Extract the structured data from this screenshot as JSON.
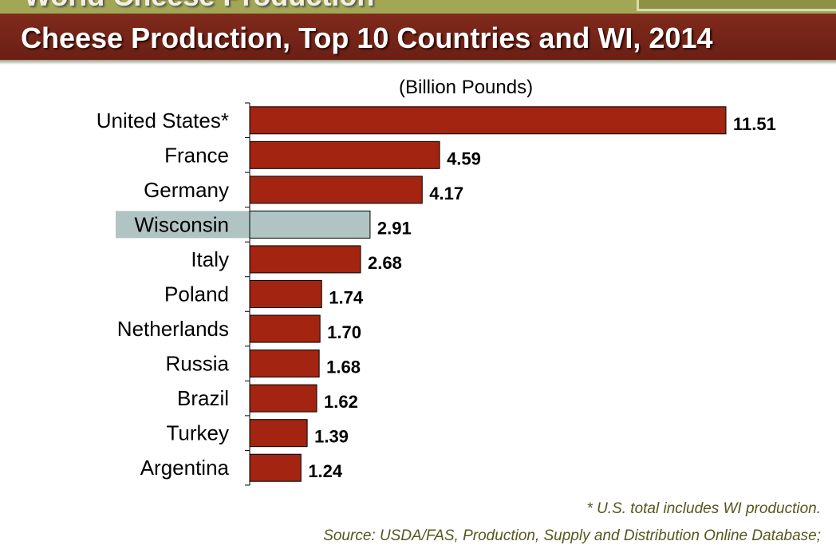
{
  "slide": {
    "section_title": "World Cheese Production",
    "footnote": "* U.S. total includes WI production.",
    "source": "Source: USDA/FAS, Production, Supply and Distribution Online Database;"
  },
  "colors": {
    "bar": "#a32410",
    "highlight_bar": "#b0c4c3",
    "title_band": "#6f2216",
    "top_band": "#a3a655"
  },
  "chart_data": {
    "type": "bar",
    "orientation": "horizontal",
    "title": "Cheese Production, Top 10 Countries and WI, 2014",
    "unit_label": "(Billion Pounds)",
    "categories": [
      "United States*",
      "France",
      "Germany",
      "Wisconsin",
      "Italy",
      "Poland",
      "Netherlands",
      "Russia",
      "Brazil",
      "Turkey",
      "Argentina"
    ],
    "values": [
      11.51,
      4.59,
      4.17,
      2.91,
      2.68,
      1.74,
      1.7,
      1.68,
      1.62,
      1.39,
      1.24
    ],
    "value_labels": [
      "11.51",
      "4.59",
      "4.17",
      "2.91",
      "2.68",
      "1.74",
      "1.70",
      "1.68",
      "1.62",
      "1.39",
      "1.24"
    ],
    "highlight_category": "Wisconsin",
    "xlim": [
      0,
      11.51
    ],
    "grid": false,
    "legend": "none"
  }
}
